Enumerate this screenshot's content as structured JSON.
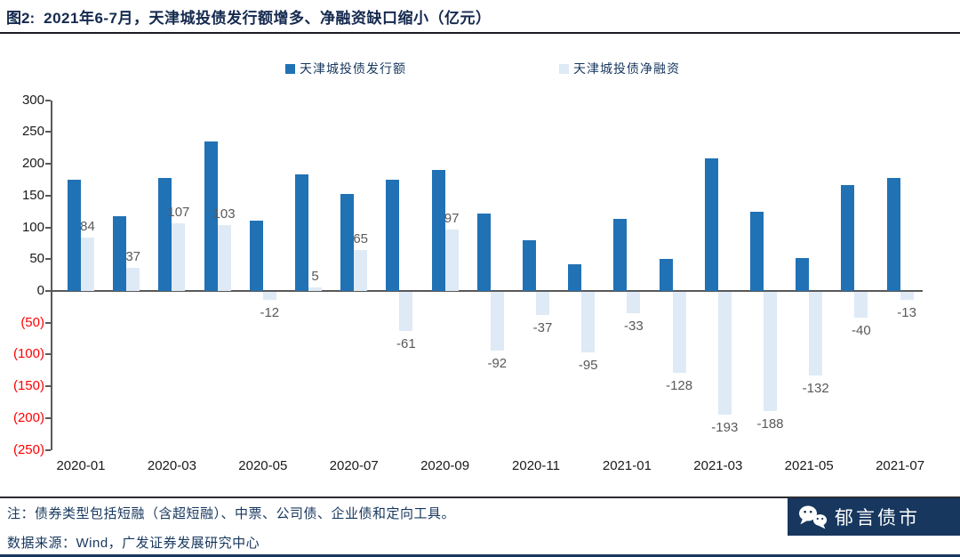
{
  "header": {
    "figure_label": "图2:",
    "title": "2021年6-7月，天津城投债发行额增多、净融资缺口缩小（亿元）"
  },
  "legend": {
    "items": [
      {
        "label": "天津城投债发行额",
        "color": "#2171B5"
      },
      {
        "label": "天津城投债净融资",
        "color": "#DEEAF6"
      }
    ]
  },
  "chart_data": {
    "type": "bar",
    "title": "2021年6-7月，天津城投债发行额增多、净融资缺口缩小（亿元）",
    "unit": "亿元",
    "categories": [
      "2020-01",
      "2020-02",
      "2020-03",
      "2020-04",
      "2020-05",
      "2020-06",
      "2020-07",
      "2020-08",
      "2020-09",
      "2020-10",
      "2020-11",
      "2020-12",
      "2021-01",
      "2021-02",
      "2021-03",
      "2021-04",
      "2021-05",
      "2021-06",
      "2021-07"
    ],
    "series": [
      {
        "name": "天津城投债发行额",
        "color": "#2171B5",
        "show_labels": false,
        "values": [
          175,
          118,
          178,
          235,
          110,
          183,
          152,
          175,
          190,
          122,
          80,
          42,
          114,
          50,
          208,
          124,
          52,
          166,
          178
        ]
      },
      {
        "name": "天津城投债净融资",
        "color": "#DEEAF6",
        "show_labels": true,
        "values": [
          84,
          37,
          107,
          103,
          -12,
          5,
          65,
          -61,
          97,
          -92,
          -37,
          -95,
          -33,
          -128,
          -193,
          -188,
          -132,
          -40,
          -13
        ]
      }
    ],
    "ylim": [
      -250,
      300
    ],
    "ytick_step": 50,
    "ytick_labels": [
      "300",
      "250",
      "200",
      "150",
      "100",
      "50",
      "0",
      "(50)",
      "(100)",
      "(150)",
      "(200)",
      "(250)"
    ],
    "negative_tick_color": "#FF0000",
    "positive_tick_color": "#1a1a1a",
    "x_tick_labels": [
      "2020-01",
      "2020-03",
      "2020-05",
      "2020-07",
      "2020-09",
      "2020-11",
      "2021-01",
      "2021-03",
      "2021-05",
      "2021-07"
    ],
    "grid": false,
    "legend_position": "top"
  },
  "footer": {
    "note": "注：债券类型包括短融（含超短融）、中票、公司债、企业债和定向工具。",
    "source": "数据来源：Wind，广发证券发展研究中心",
    "logo_text": "郁言债市"
  },
  "colors": {
    "issuance_bar": "#2171B5",
    "netfin_bar": "#DEEAF6",
    "title_navy": "#14294E",
    "footer_navy": "#17375E",
    "axis_gray": "#595959",
    "data_label_gray": "#595959",
    "negative_red": "#FF0000",
    "logo_bg": "#17375E"
  }
}
